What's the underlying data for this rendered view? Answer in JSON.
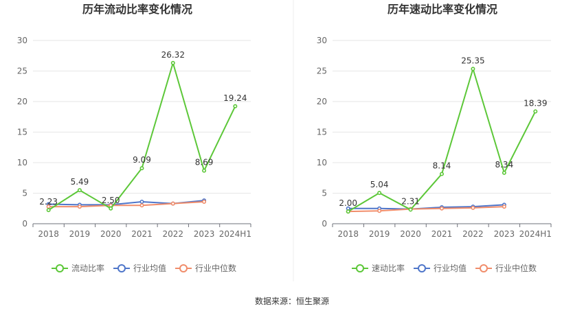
{
  "source_label": "数据来源：恒生聚源",
  "chart_data": [
    {
      "type": "line",
      "title": "历年流动比率变化情况",
      "categories": [
        "2018",
        "2019",
        "2020",
        "2021",
        "2022",
        "2023",
        "2024H1"
      ],
      "ylim": [
        0,
        30
      ],
      "yticks": [
        0,
        5,
        10,
        15,
        20,
        25,
        30
      ],
      "grid": true,
      "legend_position": "bottom",
      "series": [
        {
          "name": "流动比率",
          "color": "#5cc738",
          "values": [
            2.23,
            5.49,
            2.5,
            9.09,
            26.32,
            8.69,
            19.24
          ],
          "labels": [
            "2.23",
            "5.49",
            "2.50",
            "9.09",
            "26.32",
            "8.69",
            "19.24"
          ]
        },
        {
          "name": "行业均值",
          "color": "#4e75c9",
          "values": [
            3.2,
            3.1,
            3.1,
            3.6,
            3.3,
            3.8,
            null
          ]
        },
        {
          "name": "行业中位数",
          "color": "#f08c6a",
          "values": [
            2.8,
            2.8,
            3.0,
            3.0,
            3.3,
            3.6,
            null
          ]
        }
      ]
    },
    {
      "type": "line",
      "title": "历年速动比率变化情况",
      "categories": [
        "2018",
        "2019",
        "2020",
        "2021",
        "2022",
        "2023",
        "2024H1"
      ],
      "ylim": [
        0,
        30
      ],
      "yticks": [
        0,
        5,
        10,
        15,
        20,
        25,
        30
      ],
      "grid": true,
      "legend_position": "bottom",
      "series": [
        {
          "name": "速动比率",
          "color": "#5cc738",
          "values": [
            2.0,
            5.04,
            2.31,
            8.14,
            25.35,
            8.34,
            18.39
          ],
          "labels": [
            "2.00",
            "5.04",
            "2.31",
            "8.14",
            "25.35",
            "8.34",
            "18.39"
          ]
        },
        {
          "name": "行业均值",
          "color": "#4e75c9",
          "values": [
            2.5,
            2.5,
            2.4,
            2.7,
            2.8,
            3.1,
            null
          ]
        },
        {
          "name": "行业中位数",
          "color": "#f08c6a",
          "values": [
            2.0,
            2.1,
            2.4,
            2.5,
            2.6,
            2.8,
            null
          ]
        }
      ]
    }
  ]
}
